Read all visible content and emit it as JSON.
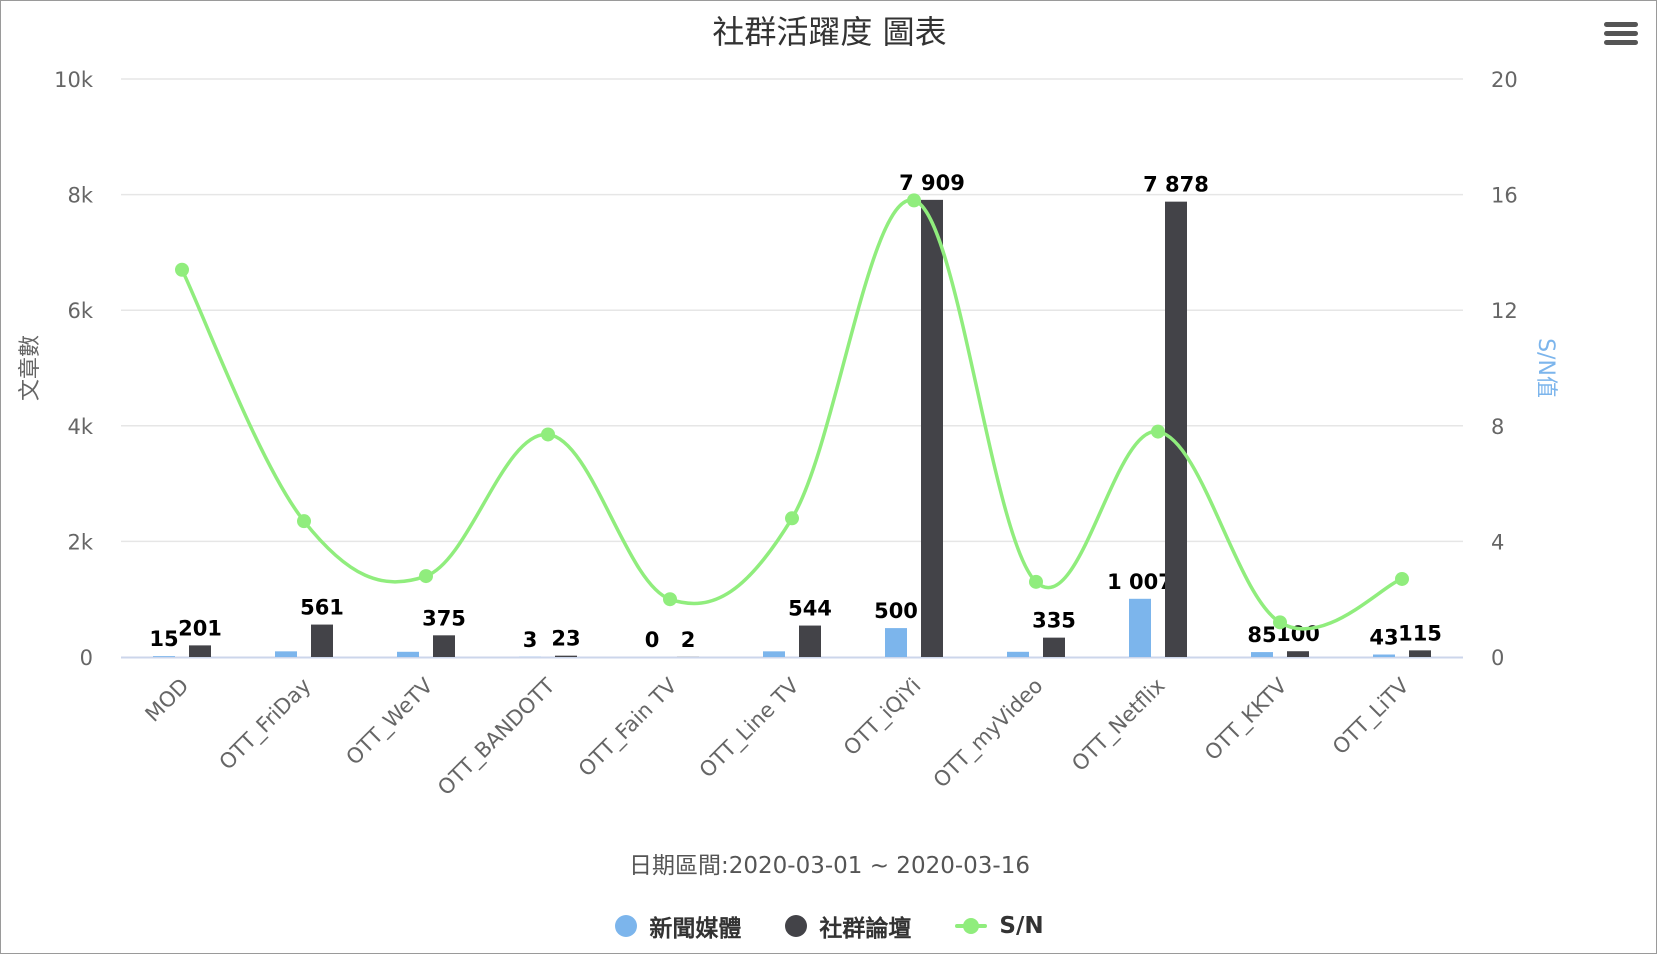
{
  "chart_data": {
    "type": "bar",
    "title": "社群活躍度 圖表",
    "xlabel": "日期區間:2020-03-01 ~ 2020-03-16",
    "ylabel": "文章數",
    "y2label": "S/N值",
    "ylim": [
      0,
      10000
    ],
    "y2lim": [
      0,
      20
    ],
    "y_ticks": [
      "0",
      "2k",
      "4k",
      "6k",
      "8k",
      "10k"
    ],
    "y2_ticks": [
      "0",
      "4",
      "8",
      "12",
      "16",
      "20"
    ],
    "grid": true,
    "legend_position": "bottom",
    "categories": [
      "MOD",
      "OTT_FriDay",
      "OTT_WeTV",
      "OTT_BANDOTT",
      "OTT_Fain TV",
      "OTT_Line TV",
      "OTT_iQiYi",
      "OTT_myVideo",
      "OTT_Netflix",
      "OTT_KKTV",
      "OTT_LiTV"
    ],
    "series": [
      {
        "name": "新聞媒體",
        "type": "bar",
        "axis": "left",
        "color": "#7cb5ec",
        "values": [
          15,
          98,
          90,
          3,
          0,
          98,
          500,
          90,
          1007,
          85,
          43
        ],
        "labeled_categories": [
          "MOD",
          "OTT_BANDOTT",
          "OTT_Fain TV",
          "OTT_iQiYi",
          "OTT_Netflix",
          "OTT_KKTV",
          "OTT_LiTV"
        ]
      },
      {
        "name": "社群論壇",
        "type": "bar",
        "axis": "left",
        "color": "#434348",
        "values": [
          201,
          561,
          375,
          23,
          2,
          544,
          7909,
          335,
          7878,
          100,
          115
        ],
        "labeled_categories": [
          "MOD",
          "OTT_FriDay",
          "OTT_WeTV",
          "OTT_BANDOTT",
          "OTT_Fain TV",
          "OTT_Line TV",
          "OTT_iQiYi",
          "OTT_myVideo",
          "OTT_Netflix",
          "OTT_KKTV",
          "OTT_LiTV"
        ]
      },
      {
        "name": "S/N",
        "type": "line",
        "axis": "right",
        "color": "#90ed7d",
        "smooth": true,
        "values": [
          13.4,
          4.7,
          2.8,
          7.7,
          2.0,
          4.8,
          15.8,
          2.6,
          7.8,
          1.2,
          2.7
        ]
      }
    ],
    "colors": {
      "grid": "#e6e6e6",
      "axis_line": "#ccd6eb",
      "tick_text": "#666666",
      "y2_title": "#7cb5ec",
      "data_label": "#000000"
    }
  },
  "toolbar": {
    "menu_icon": "hamburger-menu-icon"
  }
}
